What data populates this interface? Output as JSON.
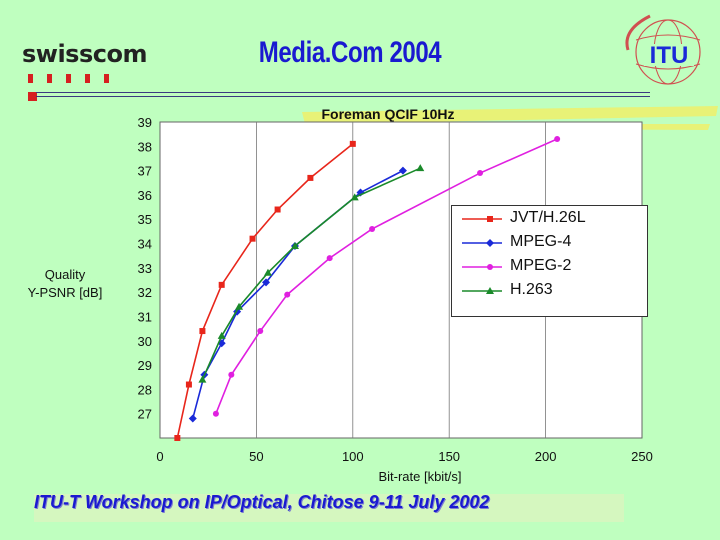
{
  "header": {
    "logo_text": "swisscom",
    "title": "Media.Com 2004",
    "itu_logo_text": "ITU"
  },
  "footer": {
    "text": "ITU-T Workshop on IP/Optical, Chitose 9-11 July 2002"
  },
  "colors": {
    "background": "#bfffbf",
    "title_blue": "#1a1ad0",
    "jvt": "#e8261b",
    "mpeg4": "#1a2ad8",
    "mpeg2": "#e020e0",
    "h263": "#1a8a2a"
  },
  "chart_data": {
    "type": "line",
    "title": "Foreman QCIF 10Hz",
    "xlabel": "Bit-rate [kbit/s]",
    "ylabel_line1": "Quality",
    "ylabel_line2": "Y-PSNR [dB]",
    "xlim": [
      0,
      250
    ],
    "ylim": [
      26,
      39
    ],
    "x_ticks": [
      0,
      50,
      100,
      150,
      200,
      250
    ],
    "x_tick_labels": [
      "0",
      "50",
      "100",
      "150",
      "200",
      "250"
    ],
    "y_ticks": [
      27,
      28,
      29,
      30,
      31,
      32,
      33,
      34,
      35,
      36,
      37,
      38,
      39
    ],
    "y_tick_labels": [
      "27",
      "28",
      "29",
      "30",
      "31",
      "32",
      "33",
      "34",
      "35",
      "36",
      "37",
      "38",
      "39"
    ],
    "grid": "vertical",
    "legend_position": "right",
    "series": [
      {
        "name": "JVT/H.26L",
        "color": "#e8261b",
        "marker": "square",
        "x": [
          9,
          15,
          22,
          32,
          48,
          61,
          78,
          100
        ],
        "y": [
          26.0,
          28.2,
          30.4,
          32.3,
          34.2,
          35.4,
          36.7,
          38.1
        ]
      },
      {
        "name": "MPEG-4",
        "color": "#1a2ad8",
        "marker": "diamond",
        "x": [
          17,
          23,
          32,
          40,
          55,
          70,
          104,
          126
        ],
        "y": [
          26.8,
          28.6,
          29.9,
          31.2,
          32.4,
          33.9,
          36.1,
          37.0
        ]
      },
      {
        "name": "MPEG-2",
        "color": "#e020e0",
        "marker": "circle",
        "x": [
          29,
          37,
          52,
          66,
          88,
          110,
          166,
          206
        ],
        "y": [
          27.0,
          28.6,
          30.4,
          31.9,
          33.4,
          34.6,
          36.9,
          38.3
        ]
      },
      {
        "name": "H.263",
        "color": "#1a8a2a",
        "marker": "triangle",
        "x": [
          22,
          32,
          41,
          56,
          70,
          101,
          135
        ],
        "y": [
          28.4,
          30.2,
          31.4,
          32.8,
          33.9,
          35.9,
          37.1
        ]
      }
    ]
  }
}
